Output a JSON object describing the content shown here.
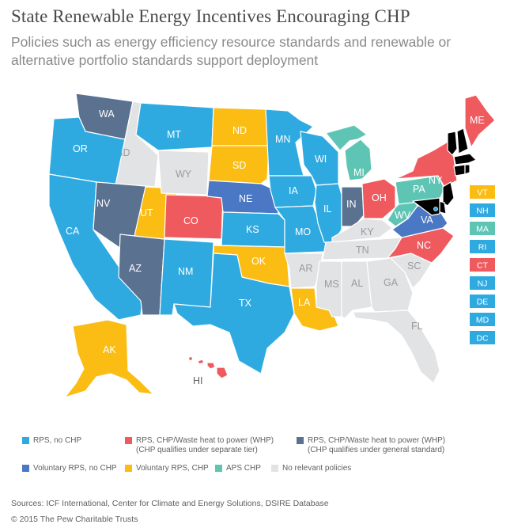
{
  "title": "State Renewable Energy Incentives Encouraging CHP",
  "subtitle": "Policies such as energy efficiency resource standards and renewable or alternative portfolio standards support deployment",
  "colors": {
    "rps_no_chp": "#2eaae1",
    "rps_chp_separate": "#ef5a5e",
    "rps_chp_general": "#5b7190",
    "voluntary_rps_no_chp": "#4b78c4",
    "voluntary_rps_chp": "#fbbd14",
    "aps_chp": "#5ec5b5",
    "no_policy": "#e2e3e4"
  },
  "states": {
    "WA": "rps_chp_general",
    "OR": "rps_no_chp",
    "CA": "rps_no_chp",
    "ID": "no_policy",
    "NV": "rps_chp_general",
    "AZ": "rps_chp_general",
    "UT": "voluntary_rps_chp",
    "MT": "rps_no_chp",
    "WY": "no_policy",
    "CO": "rps_chp_separate",
    "NM": "rps_no_chp",
    "ND": "voluntary_rps_chp",
    "SD": "voluntary_rps_chp",
    "NE": "voluntary_rps_no_chp",
    "KS": "rps_no_chp",
    "OK": "voluntary_rps_chp",
    "TX": "rps_no_chp",
    "MN": "rps_no_chp",
    "IA": "rps_no_chp",
    "MO": "rps_no_chp",
    "AR": "no_policy",
    "LA": "voluntary_rps_chp",
    "WI": "rps_no_chp",
    "IL": "rps_no_chp",
    "MI": "aps_chp",
    "IN": "rps_chp_general",
    "OH": "rps_chp_separate",
    "KY": "no_policy",
    "TN": "no_policy",
    "MS": "no_policy",
    "AL": "no_policy",
    "GA": "no_policy",
    "FL": "no_policy",
    "SC": "no_policy",
    "NC": "rps_chp_separate",
    "VA": "voluntary_rps_no_chp",
    "WV": "aps_chp",
    "PA": "aps_chp",
    "NY": "rps_chp_separate",
    "ME": "rps_chp_separate",
    "AK": "voluntary_rps_chp",
    "HI": "rps_chp_separate"
  },
  "northeast": [
    {
      "abbr": "VT",
      "category": "voluntary_rps_chp"
    },
    {
      "abbr": "NH",
      "category": "rps_no_chp"
    },
    {
      "abbr": "MA",
      "category": "aps_chp"
    },
    {
      "abbr": "RI",
      "category": "rps_no_chp"
    },
    {
      "abbr": "CT",
      "category": "rps_chp_separate"
    },
    {
      "abbr": "NJ",
      "category": "rps_no_chp"
    },
    {
      "abbr": "DE",
      "category": "rps_no_chp"
    },
    {
      "abbr": "MD",
      "category": "rps_no_chp"
    },
    {
      "abbr": "DC",
      "category": "rps_no_chp"
    }
  ],
  "legend": [
    {
      "key": "rps_no_chp",
      "label": "RPS, no CHP",
      "sub": ""
    },
    {
      "key": "rps_chp_separate",
      "label": "RPS, CHP/Waste heat to power (WHP)",
      "sub": "(CHP qualifies under separate tier)"
    },
    {
      "key": "rps_chp_general",
      "label": "RPS, CHP/Waste heat to power (WHP)",
      "sub": "(CHP qualifies under general standard)"
    },
    {
      "key": "voluntary_rps_no_chp",
      "label": "Voluntary RPS, no CHP",
      "sub": ""
    },
    {
      "key": "voluntary_rps_chp",
      "label": "Voluntary RPS, CHP",
      "sub": ""
    },
    {
      "key": "aps_chp",
      "label": "APS CHP",
      "sub": ""
    },
    {
      "key": "no_policy",
      "label": "No relevant policies",
      "sub": ""
    }
  ],
  "sources": "Sources: ICF International, Center for Climate and Energy Solutions, DSIRE Database",
  "copyright": "© 2015 The Pew Charitable Trusts"
}
